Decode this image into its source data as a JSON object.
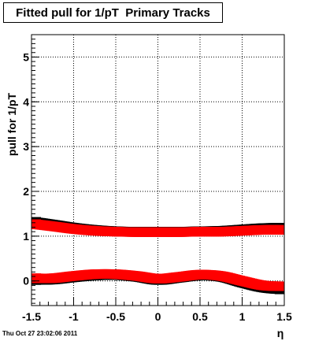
{
  "chart_data": {
    "type": "scatter",
    "title": "Fitted pull for 1/pT  Primary Tracks",
    "xlabel": "η",
    "ylabel": "pull for 1/pT",
    "xlim": [
      -1.5,
      1.5
    ],
    "ylim": [
      -0.55,
      5.5
    ],
    "x_ticks": [
      -1.5,
      -1,
      -0.5,
      0,
      0.5,
      1,
      1.5
    ],
    "x_tick_labels": [
      "-1.5",
      "-1",
      "-0.5",
      "0",
      "0.5",
      "1",
      "1.5"
    ],
    "y_ticks": [
      0,
      1,
      2,
      3,
      4,
      5
    ],
    "y_tick_labels": [
      "0",
      "1",
      "2",
      "3",
      "4",
      "5"
    ],
    "grid": true,
    "series": [
      {
        "color": "#000000",
        "x": [
          -1.5,
          -1.25,
          -1.0,
          -0.75,
          -0.5,
          -0.25,
          0.0,
          0.25,
          0.5,
          0.75,
          1.0,
          1.25,
          1.5
        ],
        "y": [
          1.32,
          1.26,
          1.19,
          1.14,
          1.11,
          1.1,
          1.1,
          1.1,
          1.11,
          1.12,
          1.15,
          1.18,
          1.19
        ]
      },
      {
        "color": "#ff0000",
        "x": [
          -1.5,
          -1.25,
          -1.0,
          -0.75,
          -0.5,
          -0.25,
          0.0,
          0.25,
          0.5,
          0.75,
          1.0,
          1.25,
          1.5
        ],
        "y": [
          1.27,
          1.22,
          1.16,
          1.12,
          1.1,
          1.09,
          1.09,
          1.09,
          1.1,
          1.1,
          1.12,
          1.14,
          1.14
        ]
      },
      {
        "color": "#000000",
        "x": [
          -1.5,
          -1.25,
          -1.0,
          -0.75,
          -0.5,
          -0.25,
          0.0,
          0.25,
          0.5,
          0.75,
          1.0,
          1.25,
          1.5
        ],
        "y": [
          0.02,
          0.03,
          0.08,
          0.12,
          0.13,
          0.09,
          0.02,
          0.07,
          0.12,
          0.09,
          -0.04,
          -0.15,
          -0.19
        ]
      },
      {
        "color": "#ff0000",
        "x": [
          -1.5,
          -1.25,
          -1.0,
          -0.75,
          -0.5,
          -0.25,
          0.0,
          0.25,
          0.5,
          0.75,
          1.0,
          1.25,
          1.5
        ],
        "y": [
          0.06,
          0.06,
          0.11,
          0.15,
          0.15,
          0.11,
          0.05,
          0.09,
          0.14,
          0.11,
          0.0,
          -0.1,
          -0.12
        ]
      }
    ]
  },
  "footer": {
    "datestamp": "Thu Oct 27 23:02:06 2011"
  }
}
